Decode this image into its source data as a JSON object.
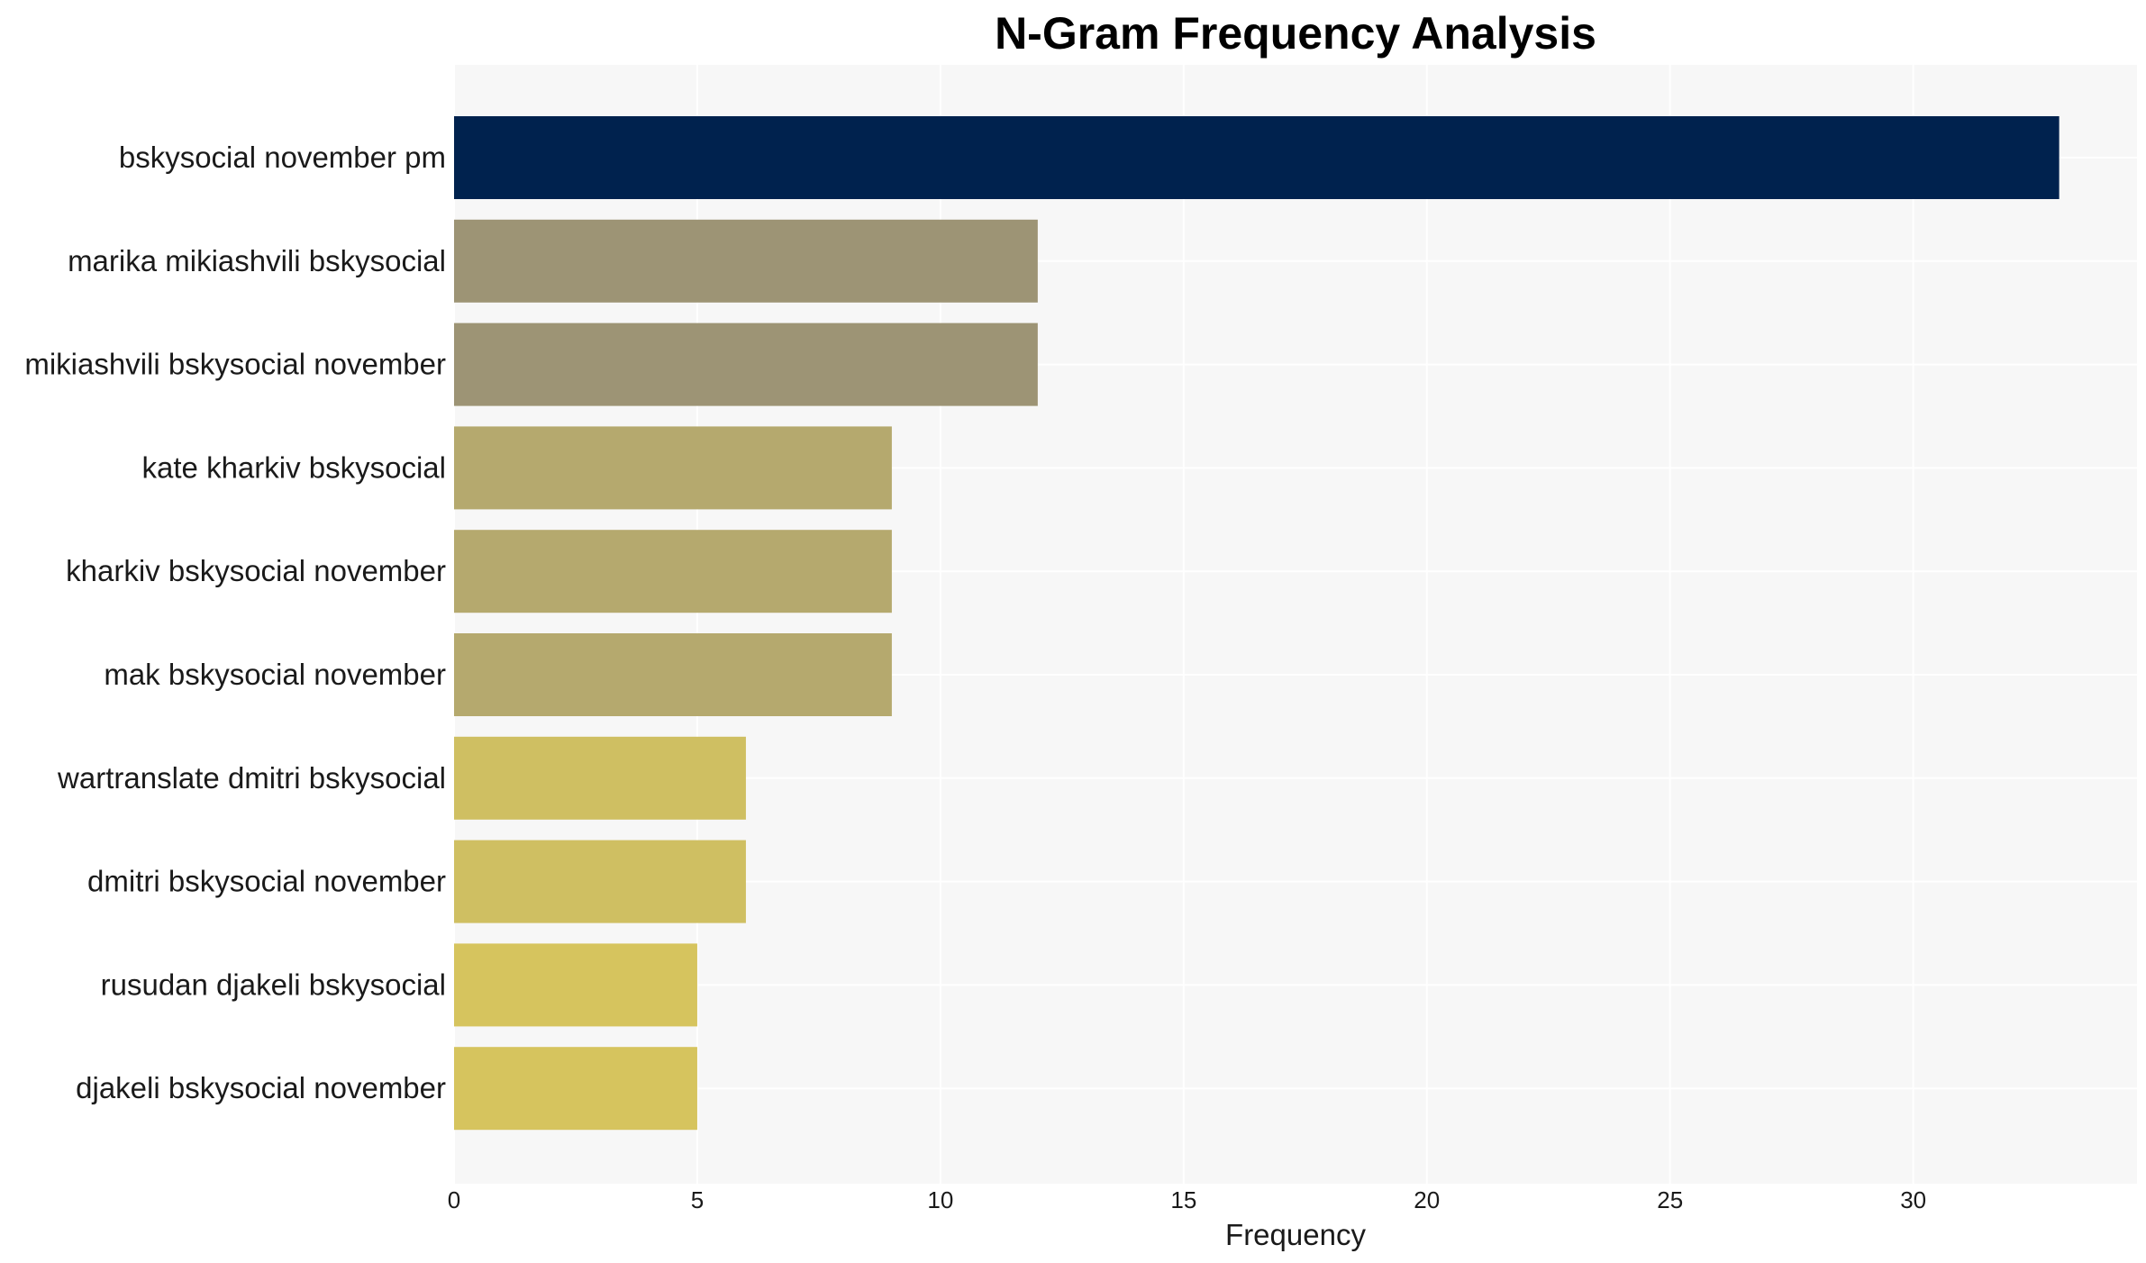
{
  "chart_data": {
    "type": "bar",
    "orientation": "horizontal",
    "title": "N-Gram Frequency Analysis",
    "xlabel": "Frequency",
    "ylabel": "",
    "xlim": [
      0,
      34.6
    ],
    "xticks": [
      0,
      5,
      10,
      15,
      20,
      25,
      30
    ],
    "grid": true,
    "legend": "none",
    "categories": [
      "bskysocial november pm",
      "marika mikiashvili bskysocial",
      "mikiashvili bskysocial november",
      "kate kharkiv bskysocial",
      "kharkiv bskysocial november",
      "mak bskysocial november",
      "wartranslate dmitri bskysocial",
      "dmitri bskysocial november",
      "rusudan djakeli bskysocial",
      "djakeli bskysocial november"
    ],
    "values": [
      33,
      12,
      12,
      9,
      9,
      9,
      6,
      6,
      5,
      5
    ],
    "colors": [
      "#00224e",
      "#9d9475",
      "#9d9475",
      "#b5a96e",
      "#b5a96e",
      "#b5a96e",
      "#cfbf62",
      "#cfbf62",
      "#d6c45e",
      "#d6c45e"
    ],
    "background": "#f7f7f7",
    "grid_color": "#ffffff"
  }
}
